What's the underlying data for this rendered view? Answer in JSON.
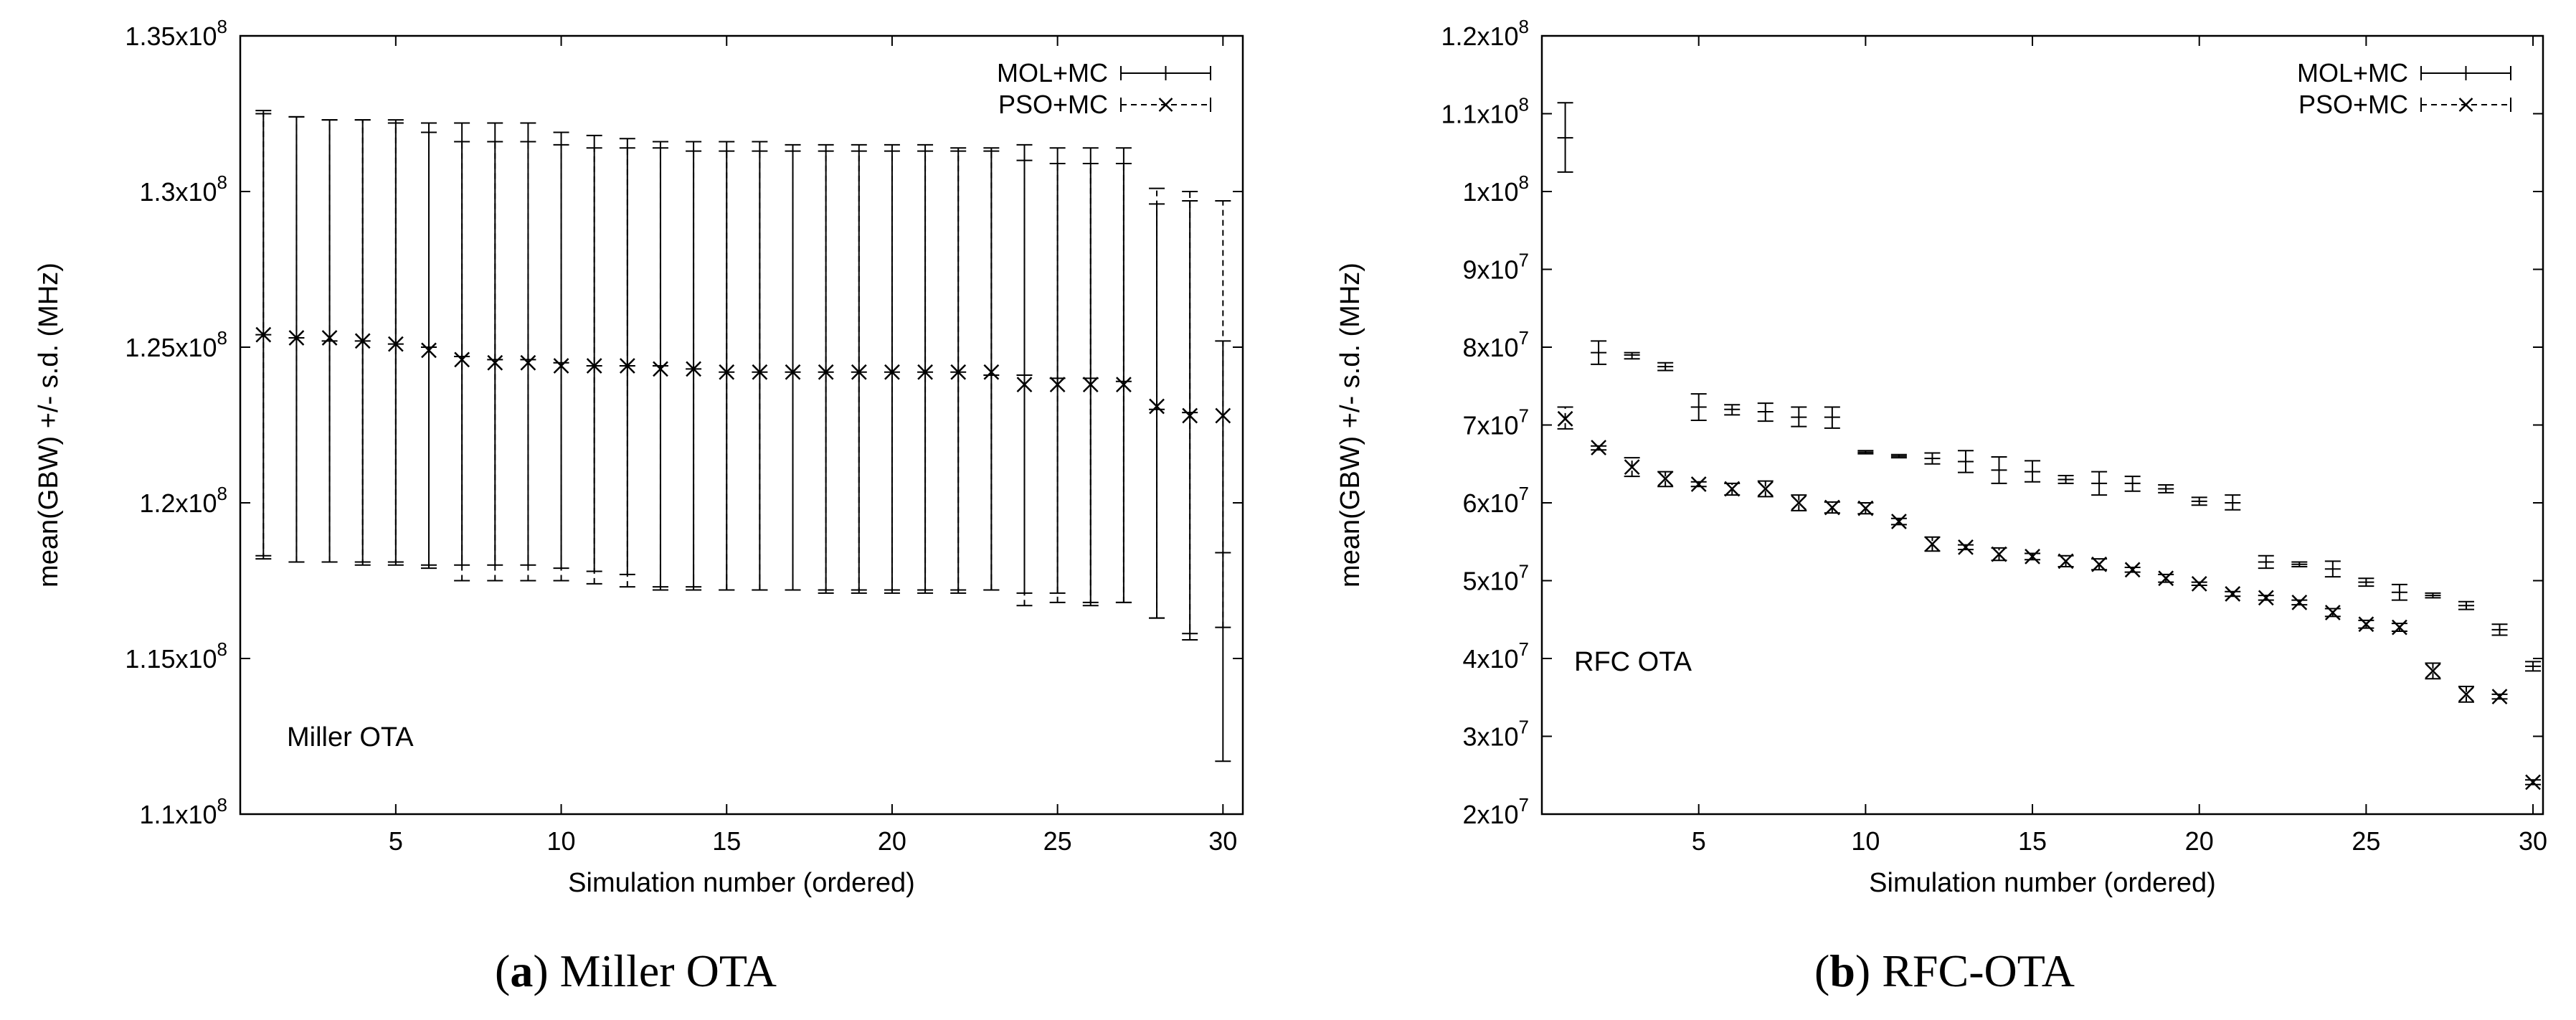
{
  "figure": {
    "caption_a_label": "a",
    "caption_a_text": "Miller OTA",
    "caption_b_label": "b",
    "caption_b_text": "RFC-OTA"
  },
  "chart_data": [
    {
      "type": "errorbar",
      "id": "a",
      "annotation": "Miller OTA",
      "xlabel": "Simulation number (ordered)",
      "ylabel": "mean(GBW) +/- s.d. (MHz)",
      "xlim": [
        0.3,
        30.6
      ],
      "ylim": [
        110000000,
        135000000
      ],
      "xticks": [
        5,
        10,
        15,
        20,
        25,
        30
      ],
      "yticks": [
        {
          "value": 110000000,
          "mant": "1.1x10",
          "exp": "8"
        },
        {
          "value": 115000000,
          "mant": "1.15x10",
          "exp": "8"
        },
        {
          "value": 120000000,
          "mant": "1.2x10",
          "exp": "8"
        },
        {
          "value": 125000000,
          "mant": "1.25x10",
          "exp": "8"
        },
        {
          "value": 130000000,
          "mant": "1.3x10",
          "exp": "8"
        },
        {
          "value": 135000000,
          "mant": "1.35x10",
          "exp": "8"
        }
      ],
      "legend": [
        "MOL+MC",
        "PSO+MC"
      ],
      "series": [
        {
          "name": "MOL+MC",
          "style": "solid",
          "x": [
            1,
            2,
            3,
            4,
            5,
            6,
            7,
            8,
            9,
            10,
            11,
            12,
            13,
            14,
            15,
            16,
            17,
            18,
            19,
            20,
            21,
            22,
            23,
            24,
            25,
            26,
            27,
            28,
            29,
            30
          ],
          "mean": [
            125400000,
            125300000,
            125200000,
            125200000,
            125100000,
            125000000,
            124700000,
            124600000,
            124600000,
            124500000,
            124400000,
            124400000,
            124400000,
            124300000,
            124200000,
            124200000,
            124200000,
            124200000,
            124200000,
            124200000,
            124200000,
            124200000,
            124100000,
            124100000,
            124000000,
            124000000,
            123900000,
            123000000,
            122900000,
            118400000
          ],
          "low": [
            118300000,
            118100000,
            118100000,
            118100000,
            118100000,
            118000000,
            118000000,
            118000000,
            118000000,
            117900000,
            117800000,
            117700000,
            117300000,
            117300000,
            117200000,
            117200000,
            117200000,
            117200000,
            117200000,
            117200000,
            117200000,
            117200000,
            117200000,
            117100000,
            117100000,
            116800000,
            116800000,
            116300000,
            115800000,
            111700000
          ],
          "high": [
            132500000,
            132400000,
            132300000,
            132300000,
            132300000,
            132200000,
            132200000,
            132200000,
            132200000,
            131900000,
            131800000,
            131700000,
            131600000,
            131600000,
            131600000,
            131600000,
            131500000,
            131500000,
            131500000,
            131500000,
            131500000,
            131400000,
            131400000,
            131500000,
            131400000,
            131400000,
            131400000,
            129600000,
            129700000,
            125200000
          ]
        },
        {
          "name": "PSO+MC",
          "style": "dashed",
          "x": [
            1,
            2,
            3,
            4,
            5,
            6,
            7,
            8,
            9,
            10,
            11,
            12,
            13,
            14,
            15,
            16,
            17,
            18,
            19,
            20,
            21,
            22,
            23,
            24,
            25,
            26,
            27,
            28,
            29,
            30
          ],
          "mean": [
            125400000,
            125300000,
            125300000,
            125200000,
            125100000,
            124900000,
            124600000,
            124500000,
            124500000,
            124400000,
            124400000,
            124400000,
            124300000,
            124300000,
            124200000,
            124200000,
            124200000,
            124200000,
            124200000,
            124200000,
            124200000,
            124200000,
            124200000,
            123800000,
            123800000,
            123800000,
            123800000,
            123100000,
            122800000,
            122800000
          ],
          "low": [
            118200000,
            118100000,
            118100000,
            118000000,
            118000000,
            117900000,
            117500000,
            117500000,
            117500000,
            117500000,
            117400000,
            117300000,
            117200000,
            117200000,
            117200000,
            117200000,
            117200000,
            117100000,
            117100000,
            117100000,
            117100000,
            117100000,
            117200000,
            116700000,
            116800000,
            116700000,
            116800000,
            116300000,
            115600000,
            116000000
          ],
          "high": [
            132600000,
            132400000,
            132300000,
            132300000,
            132200000,
            131900000,
            131600000,
            131600000,
            131600000,
            131500000,
            131400000,
            131400000,
            131400000,
            131300000,
            131300000,
            131300000,
            131300000,
            131300000,
            131300000,
            131300000,
            131300000,
            131300000,
            131300000,
            131000000,
            130900000,
            130900000,
            130900000,
            130100000,
            130000000,
            129700000
          ]
        }
      ]
    },
    {
      "type": "errorbar",
      "id": "b",
      "annotation": "RFC OTA",
      "xlabel": "Simulation number (ordered)",
      "ylabel": "mean(GBW) +/- s.d. (MHz)",
      "xlim": [
        0.3,
        30.3
      ],
      "ylim": [
        20000000,
        120000000
      ],
      "xticks": [
        5,
        10,
        15,
        20,
        25,
        30
      ],
      "yticks": [
        {
          "value": 20000000,
          "mant": "2x10",
          "exp": "7"
        },
        {
          "value": 30000000,
          "mant": "3x10",
          "exp": "7"
        },
        {
          "value": 40000000,
          "mant": "4x10",
          "exp": "7"
        },
        {
          "value": 50000000,
          "mant": "5x10",
          "exp": "7"
        },
        {
          "value": 60000000,
          "mant": "6x10",
          "exp": "7"
        },
        {
          "value": 70000000,
          "mant": "7x10",
          "exp": "7"
        },
        {
          "value": 80000000,
          "mant": "8x10",
          "exp": "7"
        },
        {
          "value": 90000000,
          "mant": "9x10",
          "exp": "7"
        },
        {
          "value": 100000000,
          "mant": "1x10",
          "exp": "8"
        },
        {
          "value": 110000000,
          "mant": "1.1x10",
          "exp": "8"
        },
        {
          "value": 120000000,
          "mant": "1.2x10",
          "exp": "8"
        }
      ],
      "legend": [
        "MOL+MC",
        "PSO+MC"
      ],
      "series": [
        {
          "name": "MOL+MC",
          "style": "solid",
          "x": [
            1,
            2,
            3,
            4,
            5,
            6,
            7,
            8,
            9,
            10,
            11,
            12,
            13,
            14,
            15,
            16,
            17,
            18,
            19,
            20,
            21,
            22,
            23,
            24,
            25,
            26,
            27,
            28,
            29,
            30
          ],
          "mean": [
            106900000,
            79300000,
            79000000,
            77500000,
            72300000,
            72000000,
            71700000,
            71000000,
            71000000,
            66500000,
            66000000,
            65700000,
            65300000,
            64200000,
            64000000,
            63000000,
            62500000,
            62500000,
            61800000,
            60200000,
            60000000,
            52400000,
            52100000,
            51500000,
            49800000,
            48500000,
            48100000,
            46800000,
            43700000,
            39000000
          ],
          "low": [
            102500000,
            77800000,
            78500000,
            77000000,
            70600000,
            71300000,
            70500000,
            69800000,
            69600000,
            66300000,
            65800000,
            65000000,
            63900000,
            62500000,
            62700000,
            62500000,
            61000000,
            61500000,
            61300000,
            59700000,
            59100000,
            51600000,
            51800000,
            50500000,
            49300000,
            47500000,
            47800000,
            46300000,
            43000000,
            38400000
          ],
          "high": [
            111400000,
            80800000,
            79300000,
            78000000,
            74000000,
            72600000,
            72800000,
            72300000,
            72300000,
            66700000,
            66200000,
            66400000,
            66700000,
            65900000,
            65400000,
            63500000,
            64000000,
            63400000,
            62300000,
            60700000,
            61000000,
            53200000,
            52400000,
            52500000,
            50300000,
            49500000,
            48400000,
            47300000,
            44400000,
            39600000
          ]
        },
        {
          "name": "PSO+MC",
          "style": "dashed",
          "x": [
            1,
            2,
            3,
            4,
            5,
            6,
            7,
            8,
            9,
            10,
            11,
            12,
            13,
            14,
            15,
            16,
            17,
            18,
            19,
            20,
            21,
            22,
            23,
            24,
            25,
            26,
            27,
            28,
            29,
            30
          ],
          "mean": [
            70800000,
            67100000,
            64600000,
            63100000,
            62400000,
            61800000,
            61800000,
            60000000,
            59400000,
            59300000,
            57600000,
            54700000,
            54300000,
            53400000,
            53100000,
            52500000,
            52100000,
            51400000,
            50300000,
            49600000,
            48300000,
            47800000,
            47200000,
            45900000,
            44400000,
            44000000,
            38400000,
            35400000,
            35100000,
            24100000
          ],
          "low": [
            69500000,
            66800000,
            63400000,
            62100000,
            62100000,
            61000000,
            60800000,
            59000000,
            58700000,
            58600000,
            57200000,
            53800000,
            54000000,
            52600000,
            52700000,
            51800000,
            51400000,
            51100000,
            49800000,
            49400000,
            48000000,
            47500000,
            46900000,
            45400000,
            43900000,
            43500000,
            37400000,
            34400000,
            34800000,
            23800000
          ],
          "high": [
            72300000,
            67300000,
            65800000,
            64000000,
            62700000,
            62500000,
            62800000,
            61000000,
            60100000,
            60000000,
            58000000,
            55600000,
            54600000,
            54200000,
            53500000,
            53200000,
            52800000,
            51700000,
            50800000,
            49800000,
            48600000,
            48100000,
            47500000,
            46400000,
            44900000,
            44500000,
            39400000,
            36400000,
            35400000,
            24400000
          ]
        }
      ]
    }
  ]
}
